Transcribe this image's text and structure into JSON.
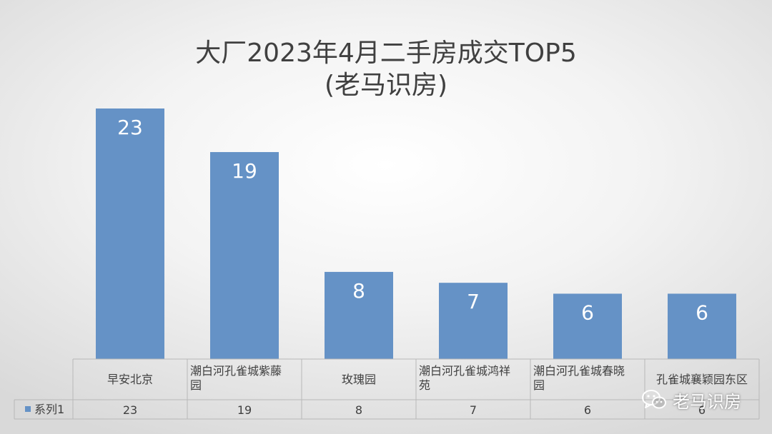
{
  "title_line1": "大厂2023年4月二手房成交TOP5",
  "title_line2": "(老马识房)",
  "chart_data": {
    "type": "bar",
    "title": "大厂2023年4月二手房成交TOP5 (老马识房)",
    "categories": [
      "早安北京",
      "潮白河孔雀城紫藤园",
      "玫瑰园",
      "潮白河孔雀城鸿祥苑",
      "潮白河孔雀城春晓园",
      "孔雀城襄颖园东区"
    ],
    "category_lines": [
      [
        "早安北京"
      ],
      [
        "潮白河孔雀城紫藤",
        "园"
      ],
      [
        "玫瑰园"
      ],
      [
        "潮白河孔雀城鸿祥",
        "苑"
      ],
      [
        "潮白河孔雀城春晓",
        "园"
      ],
      [
        "孔雀城襄颖园东区"
      ]
    ],
    "series": [
      {
        "name": "系列1",
        "values": [
          23,
          19,
          8,
          7,
          6,
          6
        ],
        "color": "#6592c6"
      }
    ],
    "ylim": [
      0,
      23
    ],
    "grid": false,
    "legend": "data-table",
    "data_labels": true
  },
  "watermark": {
    "text": "老马识房",
    "icon": "wechat-icon"
  }
}
